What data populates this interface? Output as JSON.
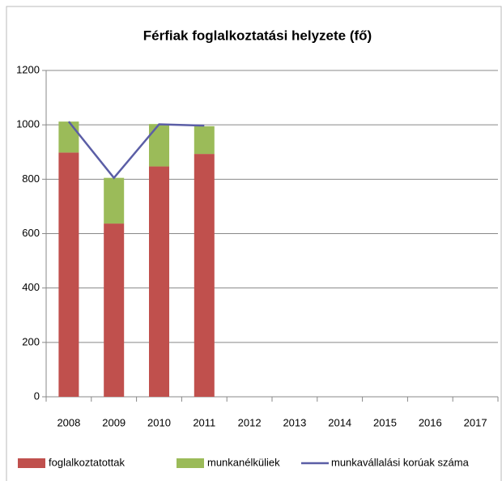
{
  "chart_data": {
    "type": "bar",
    "stacked": true,
    "title": "Férfiak foglalkoztatási helyzete (fő)",
    "categories": [
      "2008",
      "2009",
      "2010",
      "2011",
      "2012",
      "2013",
      "2014",
      "2015",
      "2016",
      "2017"
    ],
    "series": [
      {
        "name": "foglalkoztatottak",
        "type": "bar",
        "color": "#c0504d",
        "values": [
          898,
          637,
          847,
          893,
          null,
          null,
          null,
          null,
          null,
          null
        ]
      },
      {
        "name": "munkanélküliek",
        "type": "bar",
        "color": "#9bbb59",
        "values": [
          114,
          168,
          156,
          102,
          null,
          null,
          null,
          null,
          null,
          null
        ]
      },
      {
        "name": "munkavállalási korúak száma",
        "type": "line",
        "color": "#5b5ea6",
        "values": [
          1012,
          805,
          1002,
          997,
          null,
          null,
          null,
          null,
          null,
          null
        ]
      }
    ],
    "ylim": [
      0,
      1200
    ],
    "yticks": [
      0,
      200,
      400,
      600,
      800,
      1000,
      1200
    ],
    "grid": true,
    "legend": "bottom"
  }
}
